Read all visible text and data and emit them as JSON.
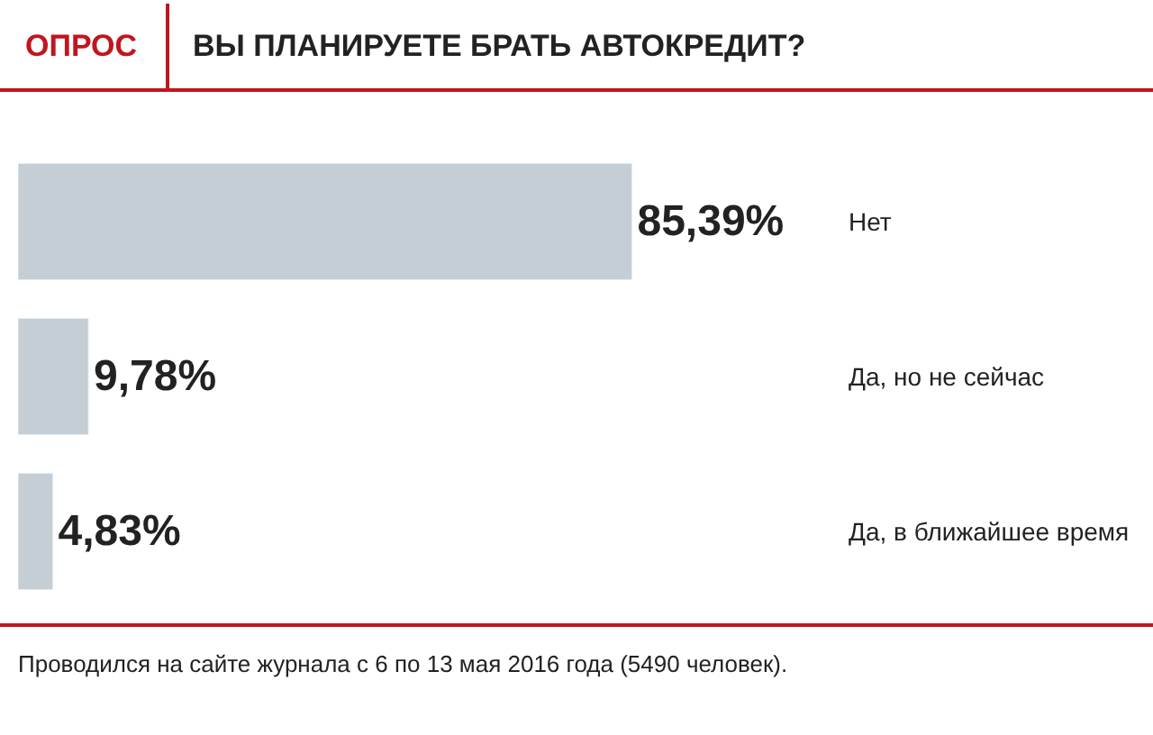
{
  "chart_data": {
    "type": "bar",
    "orientation": "horizontal",
    "subtitle": "ОПРОС",
    "title": "ВЫ ПЛАНИРУЕТЕ БРАТЬ АВТОКРЕДИТ?",
    "categories": [
      "Нет",
      "Да, но не сейчас",
      "Да, в ближайшее время"
    ],
    "values": [
      85.39,
      9.78,
      4.83
    ],
    "value_labels": [
      "85,39%",
      "9,78%",
      "4,83%"
    ],
    "color": "#c5ced5",
    "tick_labels": "y",
    "legend": false,
    "annotations": [
      "Проводился на сайте журнала с 6 по 13 мая 2016 года (5490 человек)."
    ]
  }
}
